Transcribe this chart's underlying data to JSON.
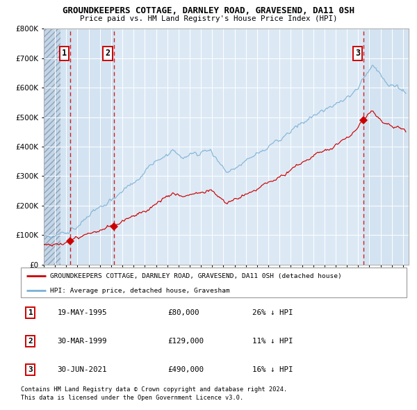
{
  "title": "GROUNDKEEPERS COTTAGE, DARNLEY ROAD, GRAVESEND, DA11 0SH",
  "subtitle": "Price paid vs. HM Land Registry's House Price Index (HPI)",
  "transactions": [
    {
      "label": "1",
      "date_str": "19-MAY-1995",
      "date_x": 1995.375,
      "price": 80000,
      "pct": "26%",
      "dir": "↓"
    },
    {
      "label": "2",
      "date_str": "30-MAR-1999",
      "date_x": 1999.25,
      "price": 129000,
      "pct": "11%",
      "dir": "↓"
    },
    {
      "label": "3",
      "date_str": "30-JUN-2021",
      "date_x": 2021.5,
      "price": 490000,
      "pct": "16%",
      "dir": "↓"
    }
  ],
  "legend_property": "GROUNDKEEPERS COTTAGE, DARNLEY ROAD, GRAVESEND, DA11 0SH (detached house)",
  "legend_hpi": "HPI: Average price, detached house, Gravesham",
  "footnote1": "Contains HM Land Registry data © Crown copyright and database right 2024.",
  "footnote2": "This data is licensed under the Open Government Licence v3.0.",
  "ylim": [
    0,
    800000
  ],
  "xlim_start": 1993.0,
  "xlim_end": 2025.5,
  "hatch_region_end": 1994.5,
  "plot_bg": "#dce9f5",
  "hatch_bg": "#c8d8ea",
  "grid_color": "#ffffff",
  "line_color_red": "#cc0000",
  "line_color_blue": "#7ab0d4",
  "vline_color": "#cc0000",
  "marker_color": "#cc0000",
  "shade_alpha": 0.18,
  "shade_color": "#b0ccdf"
}
